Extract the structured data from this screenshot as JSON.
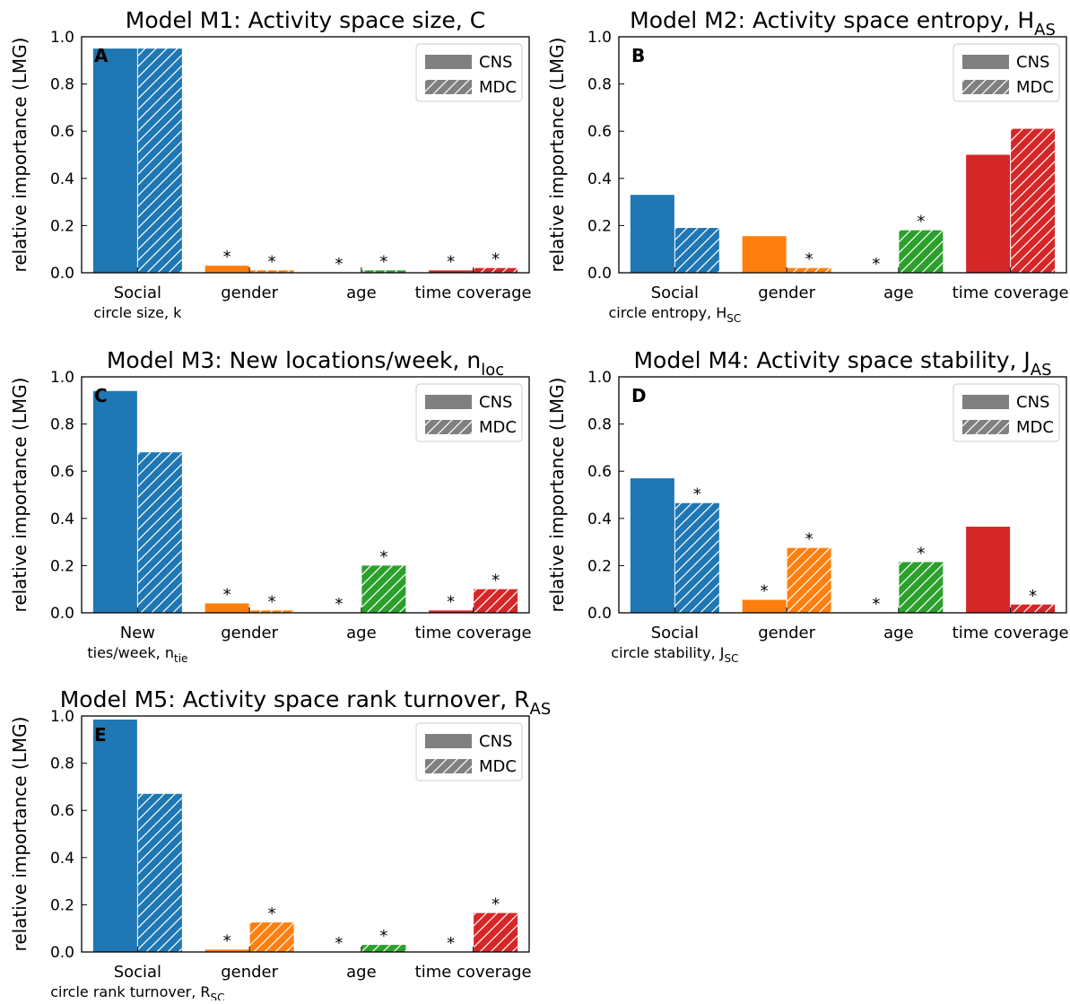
{
  "legend_labels": {
    "solid": "CNS",
    "hatched": "MDC"
  },
  "legend_colors": {
    "solid": "#808080",
    "hatched": "#808080"
  },
  "category_colors": [
    "#1f77b4",
    "#ff7f0e",
    "#2ca02c",
    "#d62728"
  ],
  "chart_data": [
    {
      "type": "bar",
      "panel_letter": "A",
      "title": "Model M1: Activity space size, C",
      "title_sub": "",
      "ylabel": "relative importance (LMG)",
      "ylim": [
        0,
        1.0
      ],
      "yticks": [
        "0.0",
        "0.2",
        "0.4",
        "0.6",
        "0.8",
        "1.0"
      ],
      "categories": [
        {
          "label": "Social",
          "label2": "circle size, k",
          "label2_sub": ""
        },
        {
          "label": "gender",
          "label2": "",
          "label2_sub": ""
        },
        {
          "label": "age",
          "label2": "",
          "label2_sub": ""
        },
        {
          "label": "time coverage",
          "label2": "",
          "label2_sub": ""
        }
      ],
      "series": [
        {
          "name": "CNS",
          "values": [
            0.95,
            0.03,
            0.0,
            0.01
          ],
          "stars": [
            false,
            true,
            true,
            true
          ]
        },
        {
          "name": "MDC",
          "values": [
            0.95,
            0.01,
            0.01,
            0.02
          ],
          "stars": [
            false,
            true,
            true,
            true
          ]
        }
      ],
      "legend_position": "top-right"
    },
    {
      "type": "bar",
      "panel_letter": "B",
      "title": "Model M2: Activity space entropy, H",
      "title_sub": "AS",
      "ylabel": "relative importance (LMG)",
      "ylim": [
        0,
        1.0
      ],
      "yticks": [
        "0.0",
        "0.2",
        "0.4",
        "0.6",
        "0.8",
        "1.0"
      ],
      "categories": [
        {
          "label": "Social",
          "label2": "circle entropy, H",
          "label2_sub": "SC"
        },
        {
          "label": "gender",
          "label2": "",
          "label2_sub": ""
        },
        {
          "label": "age",
          "label2": "",
          "label2_sub": ""
        },
        {
          "label": "time coverage",
          "label2": "",
          "label2_sub": ""
        }
      ],
      "series": [
        {
          "name": "CNS",
          "values": [
            0.33,
            0.155,
            0.0,
            0.5
          ],
          "stars": [
            false,
            false,
            true,
            false
          ]
        },
        {
          "name": "MDC",
          "values": [
            0.19,
            0.02,
            0.18,
            0.61
          ],
          "stars": [
            false,
            true,
            true,
            false
          ]
        }
      ],
      "legend_position": "top-right"
    },
    {
      "type": "bar",
      "panel_letter": "C",
      "title": "Model M3: New locations/week, n",
      "title_sub": "loc",
      "ylabel": "relative importance (LMG)",
      "ylim": [
        0,
        1.0
      ],
      "yticks": [
        "0.0",
        "0.2",
        "0.4",
        "0.6",
        "0.8",
        "1.0"
      ],
      "categories": [
        {
          "label": "New",
          "label2": "ties/week, n",
          "label2_sub": "tie"
        },
        {
          "label": "gender",
          "label2": "",
          "label2_sub": ""
        },
        {
          "label": "age",
          "label2": "",
          "label2_sub": ""
        },
        {
          "label": "time coverage",
          "label2": "",
          "label2_sub": ""
        }
      ],
      "series": [
        {
          "name": "CNS",
          "values": [
            0.94,
            0.04,
            0.0,
            0.01
          ],
          "stars": [
            false,
            true,
            true,
            true
          ]
        },
        {
          "name": "MDC",
          "values": [
            0.68,
            0.01,
            0.2,
            0.1
          ],
          "stars": [
            false,
            true,
            true,
            true
          ]
        }
      ],
      "legend_position": "top-right"
    },
    {
      "type": "bar",
      "panel_letter": "D",
      "title": "Model M4: Activity space stability, J",
      "title_sub": "AS",
      "ylabel": "relative importance (LMG)",
      "ylim": [
        0,
        1.0
      ],
      "yticks": [
        "0.0",
        "0.2",
        "0.4",
        "0.6",
        "0.8",
        "1.0"
      ],
      "categories": [
        {
          "label": "Social",
          "label2": "circle stability, J",
          "label2_sub": "SC"
        },
        {
          "label": "gender",
          "label2": "",
          "label2_sub": ""
        },
        {
          "label": "age",
          "label2": "",
          "label2_sub": ""
        },
        {
          "label": "time coverage",
          "label2": "",
          "label2_sub": ""
        }
      ],
      "series": [
        {
          "name": "CNS",
          "values": [
            0.57,
            0.055,
            0.0,
            0.365
          ],
          "stars": [
            false,
            true,
            true,
            false
          ]
        },
        {
          "name": "MDC",
          "values": [
            0.465,
            0.275,
            0.215,
            0.035
          ],
          "stars": [
            true,
            true,
            true,
            true
          ]
        }
      ],
      "legend_position": "top-right"
    },
    {
      "type": "bar",
      "panel_letter": "E",
      "title": "Model M5: Activity space rank turnover, R",
      "title_sub": "AS",
      "ylabel": "relative importance (LMG)",
      "ylim": [
        0,
        1.0
      ],
      "yticks": [
        "0.0",
        "0.2",
        "0.4",
        "0.6",
        "0.8",
        "1.0"
      ],
      "categories": [
        {
          "label": "Social",
          "label2": "circle rank turnover, R",
          "label2_sub": "SC"
        },
        {
          "label": "gender",
          "label2": "",
          "label2_sub": ""
        },
        {
          "label": "age",
          "label2": "",
          "label2_sub": ""
        },
        {
          "label": "time coverage",
          "label2": "",
          "label2_sub": ""
        }
      ],
      "series": [
        {
          "name": "CNS",
          "values": [
            0.985,
            0.01,
            0.0,
            0.0
          ],
          "stars": [
            false,
            true,
            true,
            true
          ]
        },
        {
          "name": "MDC",
          "values": [
            0.67,
            0.125,
            0.03,
            0.165
          ],
          "stars": [
            false,
            true,
            true,
            true
          ]
        }
      ],
      "legend_position": "top-right"
    }
  ]
}
